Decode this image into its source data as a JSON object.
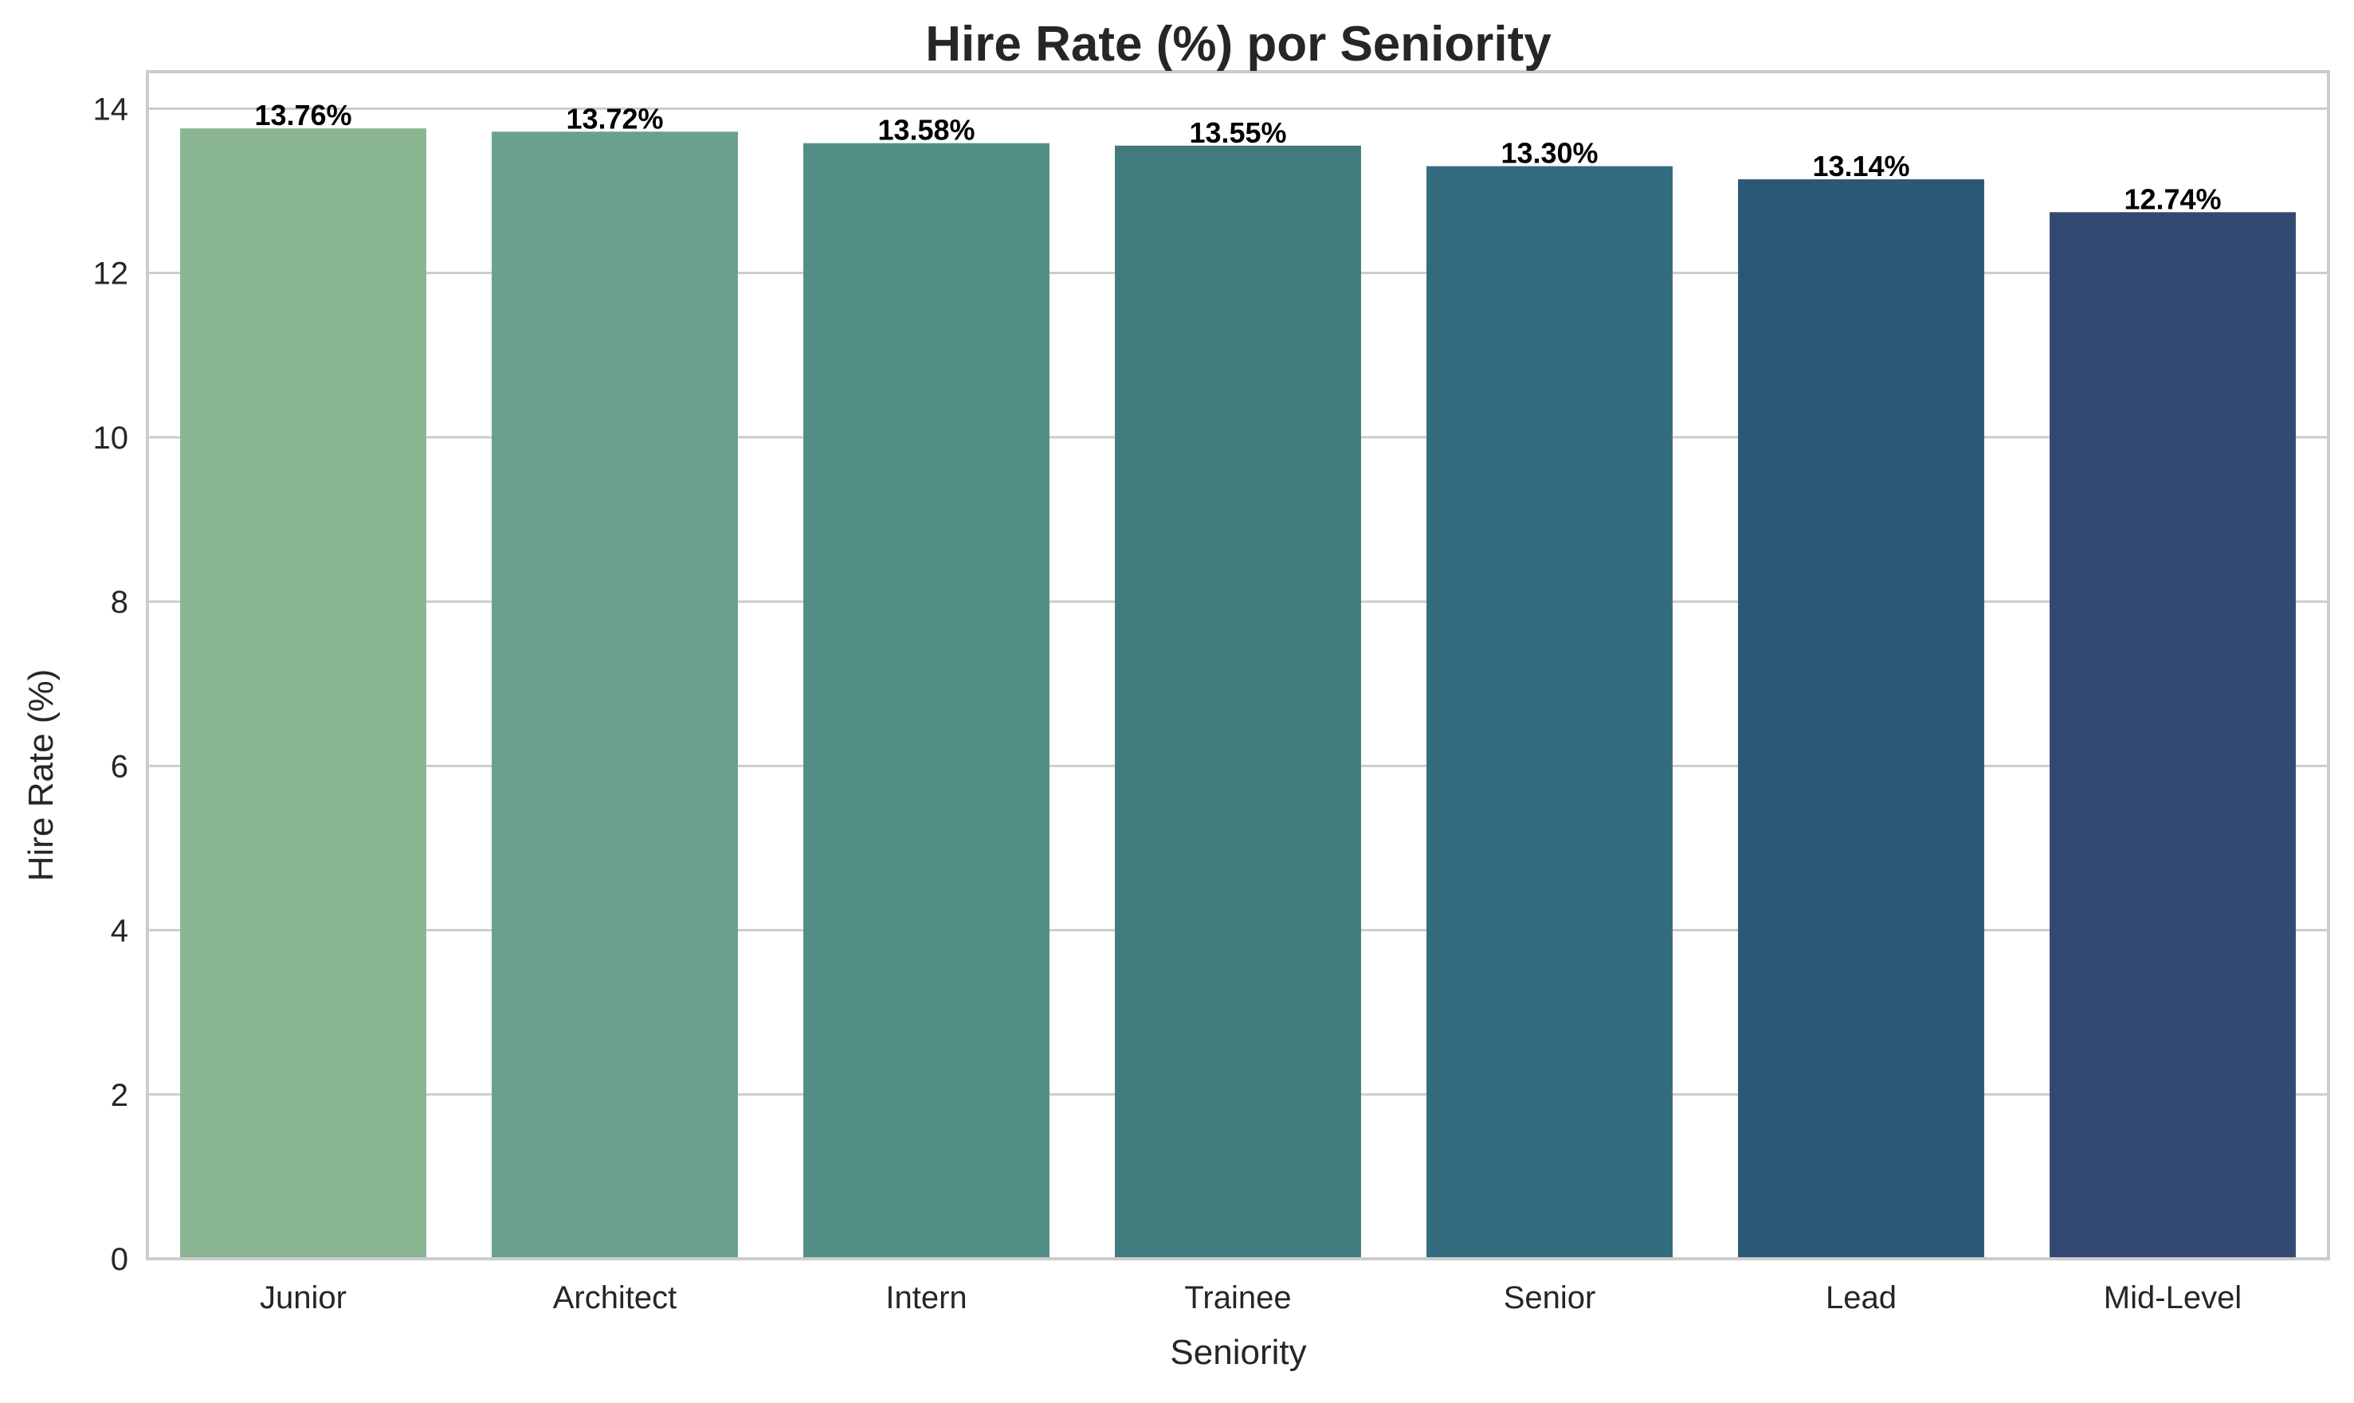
{
  "chart_data": {
    "type": "bar",
    "title": "Hire Rate (%) por Seniority",
    "xlabel": "Seniority",
    "ylabel": "Hire Rate (%)",
    "categories": [
      "Junior",
      "Architect",
      "Intern",
      "Trainee",
      "Senior",
      "Lead",
      "Mid-Level"
    ],
    "values": [
      13.76,
      13.72,
      13.58,
      13.55,
      13.3,
      13.14,
      12.74
    ],
    "data_labels": [
      "13.76%",
      "13.72%",
      "13.58%",
      "13.55%",
      "13.30%",
      "13.14%",
      "12.74%"
    ],
    "bar_colors": [
      "#89b592",
      "#6aa18c",
      "#538e86",
      "#417b7e",
      "#336b7e",
      "#2b5877",
      "#324a71"
    ],
    "ylim": [
      0,
      14.45
    ],
    "yticks": [
      0,
      2,
      4,
      6,
      8,
      10,
      12,
      14
    ],
    "grid": "horizontal",
    "legend": "none"
  }
}
